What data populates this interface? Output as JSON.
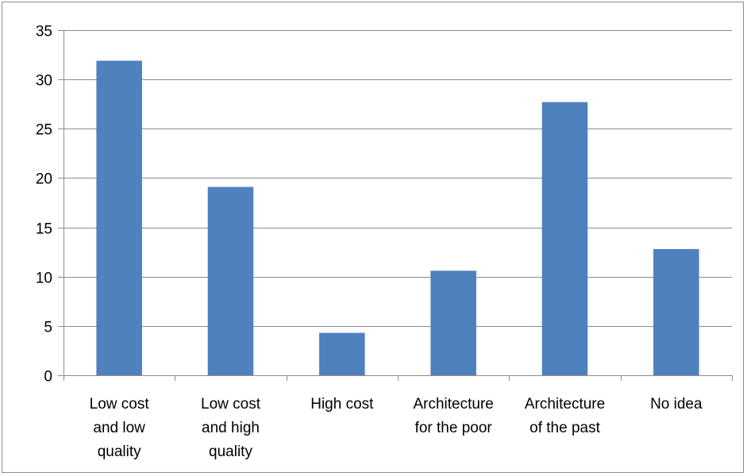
{
  "chart_data": {
    "type": "bar",
    "title": "",
    "xlabel": "",
    "ylabel": "",
    "categories": [
      [
        "Low cost",
        "and low",
        "quality"
      ],
      [
        "Low cost",
        "and high",
        "quality"
      ],
      [
        "High cost"
      ],
      [
        "Architecture",
        "for the poor"
      ],
      [
        "Architecture",
        "of the past"
      ],
      [
        "No idea"
      ]
    ],
    "values": [
      31.9,
      19.1,
      4.3,
      10.6,
      27.7,
      12.8
    ],
    "ylim": [
      0,
      35
    ],
    "yticks": [
      0,
      5,
      10,
      15,
      20,
      25,
      30,
      35
    ],
    "grid": true,
    "legend": "none",
    "colors": {
      "bar": "#4f81bd",
      "grid": "#8c8c8c",
      "axis": "#8c8c8c"
    }
  }
}
